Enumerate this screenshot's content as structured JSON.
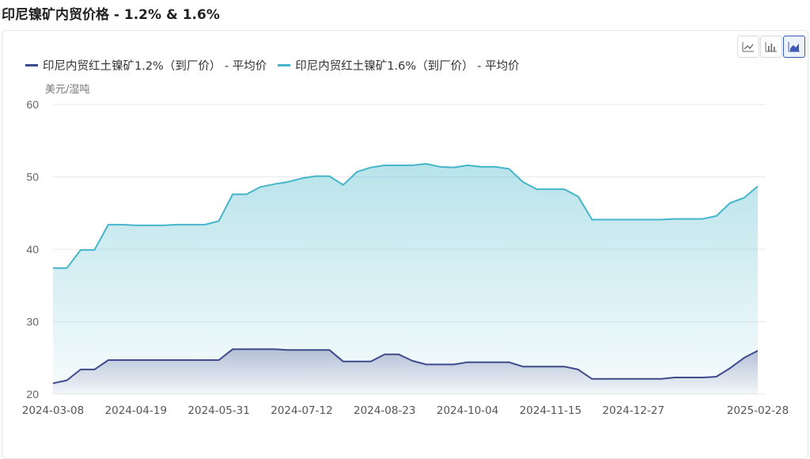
{
  "title": "印尼镍矿内贸价格 - 1.2% & 1.6%",
  "unit": "美元/湿吨",
  "toolbar": [
    {
      "icon": "line-chart-icon",
      "active": false
    },
    {
      "icon": "bar-chart-icon",
      "active": false
    },
    {
      "icon": "area-chart-icon",
      "active": true
    }
  ],
  "colors": {
    "series1": "#3f4a8c",
    "series2": "#45b5c9"
  },
  "chart_data": {
    "type": "area",
    "ylim": [
      20,
      60
    ],
    "yticks": [
      20,
      30,
      40,
      50,
      60
    ],
    "xtick_labels": [
      "2024-03-08",
      "2024-04-19",
      "2024-05-31",
      "2024-07-12",
      "2024-08-23",
      "2024-10-04",
      "2024-11-15",
      "2024-12-27",
      "2025-02-28"
    ],
    "legend_position": "top-left",
    "grid": true,
    "series": [
      {
        "name": "印尼内贸红土镍矿1.2%（到厂价） - 平均价",
        "values": [
          21.5,
          21.9,
          23.4,
          23.4,
          24.7,
          24.7,
          24.7,
          24.7,
          24.7,
          24.7,
          24.7,
          24.7,
          24.7,
          26.2,
          26.2,
          26.2,
          26.2,
          26.1,
          26.1,
          26.1,
          26.1,
          24.5,
          24.5,
          24.5,
          25.5,
          25.5,
          24.6,
          24.1,
          24.1,
          24.1,
          24.4,
          24.4,
          24.4,
          24.4,
          23.8,
          23.8,
          23.8,
          23.8,
          23.4,
          22.1,
          22.1,
          22.1,
          22.1,
          22.1,
          22.1,
          22.3,
          22.3,
          22.3,
          22.4,
          23.6,
          25.0,
          26.0
        ]
      },
      {
        "name": "印尼内贸红土镍矿1.6%（到厂价） - 平均价",
        "values": [
          37.4,
          37.4,
          39.9,
          39.9,
          43.4,
          43.4,
          43.3,
          43.3,
          43.3,
          43.4,
          43.4,
          43.4,
          43.9,
          47.6,
          47.6,
          48.6,
          49.0,
          49.3,
          49.8,
          50.1,
          50.1,
          48.9,
          50.7,
          51.3,
          51.6,
          51.6,
          51.6,
          51.8,
          51.4,
          51.3,
          51.6,
          51.4,
          51.4,
          51.1,
          49.3,
          48.3,
          48.3,
          48.3,
          47.3,
          44.1,
          44.1,
          44.1,
          44.1,
          44.1,
          44.1,
          44.2,
          44.2,
          44.2,
          44.6,
          46.4,
          47.1,
          48.7
        ]
      }
    ]
  }
}
